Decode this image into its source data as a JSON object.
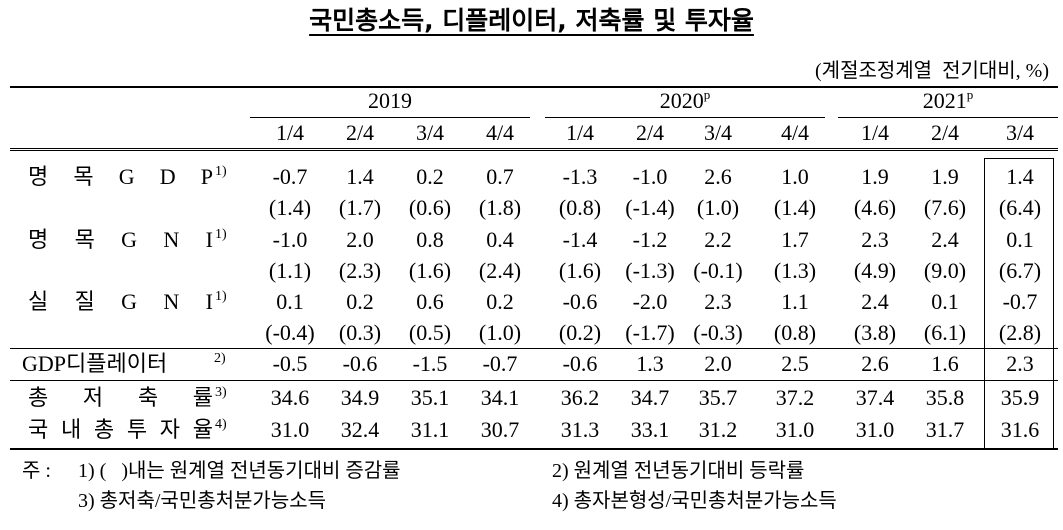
{
  "title": "국민총소득, 디플레이터, 저축률 및 투자율",
  "unit": "(계절조정계열  전기대비, %)",
  "table": {
    "years": [
      {
        "label": "2019"
      },
      {
        "label": "2020",
        "sup": "p"
      },
      {
        "label": "2021",
        "sup": "p"
      }
    ],
    "quarters": [
      "1/4",
      "2/4",
      "3/4",
      "4/4",
      "1/4",
      "2/4",
      "3/4",
      "4/4",
      "1/4",
      "2/4",
      "3/4"
    ],
    "rows": [
      {
        "label": "명 목 G D P",
        "sup": "1)",
        "values": [
          "-0.7",
          "1.4",
          "0.2",
          "0.7",
          "-1.3",
          "-1.0",
          "2.6",
          "1.0",
          "1.9",
          "1.9",
          "1.4"
        ],
        "yoy": [
          "(1.4)",
          "(1.7)",
          "(0.6)",
          "(1.8)",
          "(0.8)",
          "(-1.4)",
          "(1.0)",
          "(1.4)",
          "(4.6)",
          "(7.6)",
          "(6.4)"
        ]
      },
      {
        "label": "명 목 G N I",
        "sup": "1)",
        "values": [
          "-1.0",
          "2.0",
          "0.8",
          "0.4",
          "-1.4",
          "-1.2",
          "2.2",
          "1.7",
          "2.3",
          "2.4",
          "0.1"
        ],
        "yoy": [
          "(1.1)",
          "(2.3)",
          "(1.6)",
          "(2.4)",
          "(1.6)",
          "(-1.3)",
          "(-0.1)",
          "(1.3)",
          "(4.9)",
          "(9.0)",
          "(6.7)"
        ]
      },
      {
        "label": "실 질 G N I",
        "sup": "1)",
        "values": [
          "0.1",
          "0.2",
          "0.6",
          "0.2",
          "-0.6",
          "-2.0",
          "2.3",
          "1.1",
          "2.4",
          "0.1",
          "-0.7"
        ],
        "yoy": [
          "(-0.4)",
          "(0.3)",
          "(0.5)",
          "(1.0)",
          "(0.2)",
          "(-1.7)",
          "(-0.3)",
          "(0.8)",
          "(3.8)",
          "(6.1)",
          "(2.8)"
        ]
      },
      {
        "label": "GDP디플레이터",
        "sup": "2)",
        "values": [
          "-0.5",
          "-0.6",
          "-1.5",
          "-0.7",
          "-0.6",
          "1.3",
          "2.0",
          "2.5",
          "2.6",
          "1.6",
          "2.3"
        ]
      },
      {
        "label": "총 저 축 률",
        "sup": "3)",
        "values": [
          "34.6",
          "34.9",
          "35.1",
          "34.1",
          "36.2",
          "34.7",
          "35.7",
          "37.2",
          "37.4",
          "35.8",
          "35.9"
        ]
      },
      {
        "label": "국 내 총 투 자 율",
        "sup": "4)",
        "values": [
          "31.0",
          "32.4",
          "31.1",
          "30.7",
          "31.3",
          "33.1",
          "31.2",
          "31.0",
          "31.0",
          "31.7",
          "31.6"
        ]
      }
    ]
  },
  "footnotes": {
    "prefix": "주 :",
    "items": [
      "1) (   )내는 원계열 전년동기대비 증감률",
      "2) 원계열 전년동기대비 등락률",
      "3) 총저축/국민총처분가능소득",
      "4) 총자본형성/국민총처분가능소득"
    ]
  }
}
